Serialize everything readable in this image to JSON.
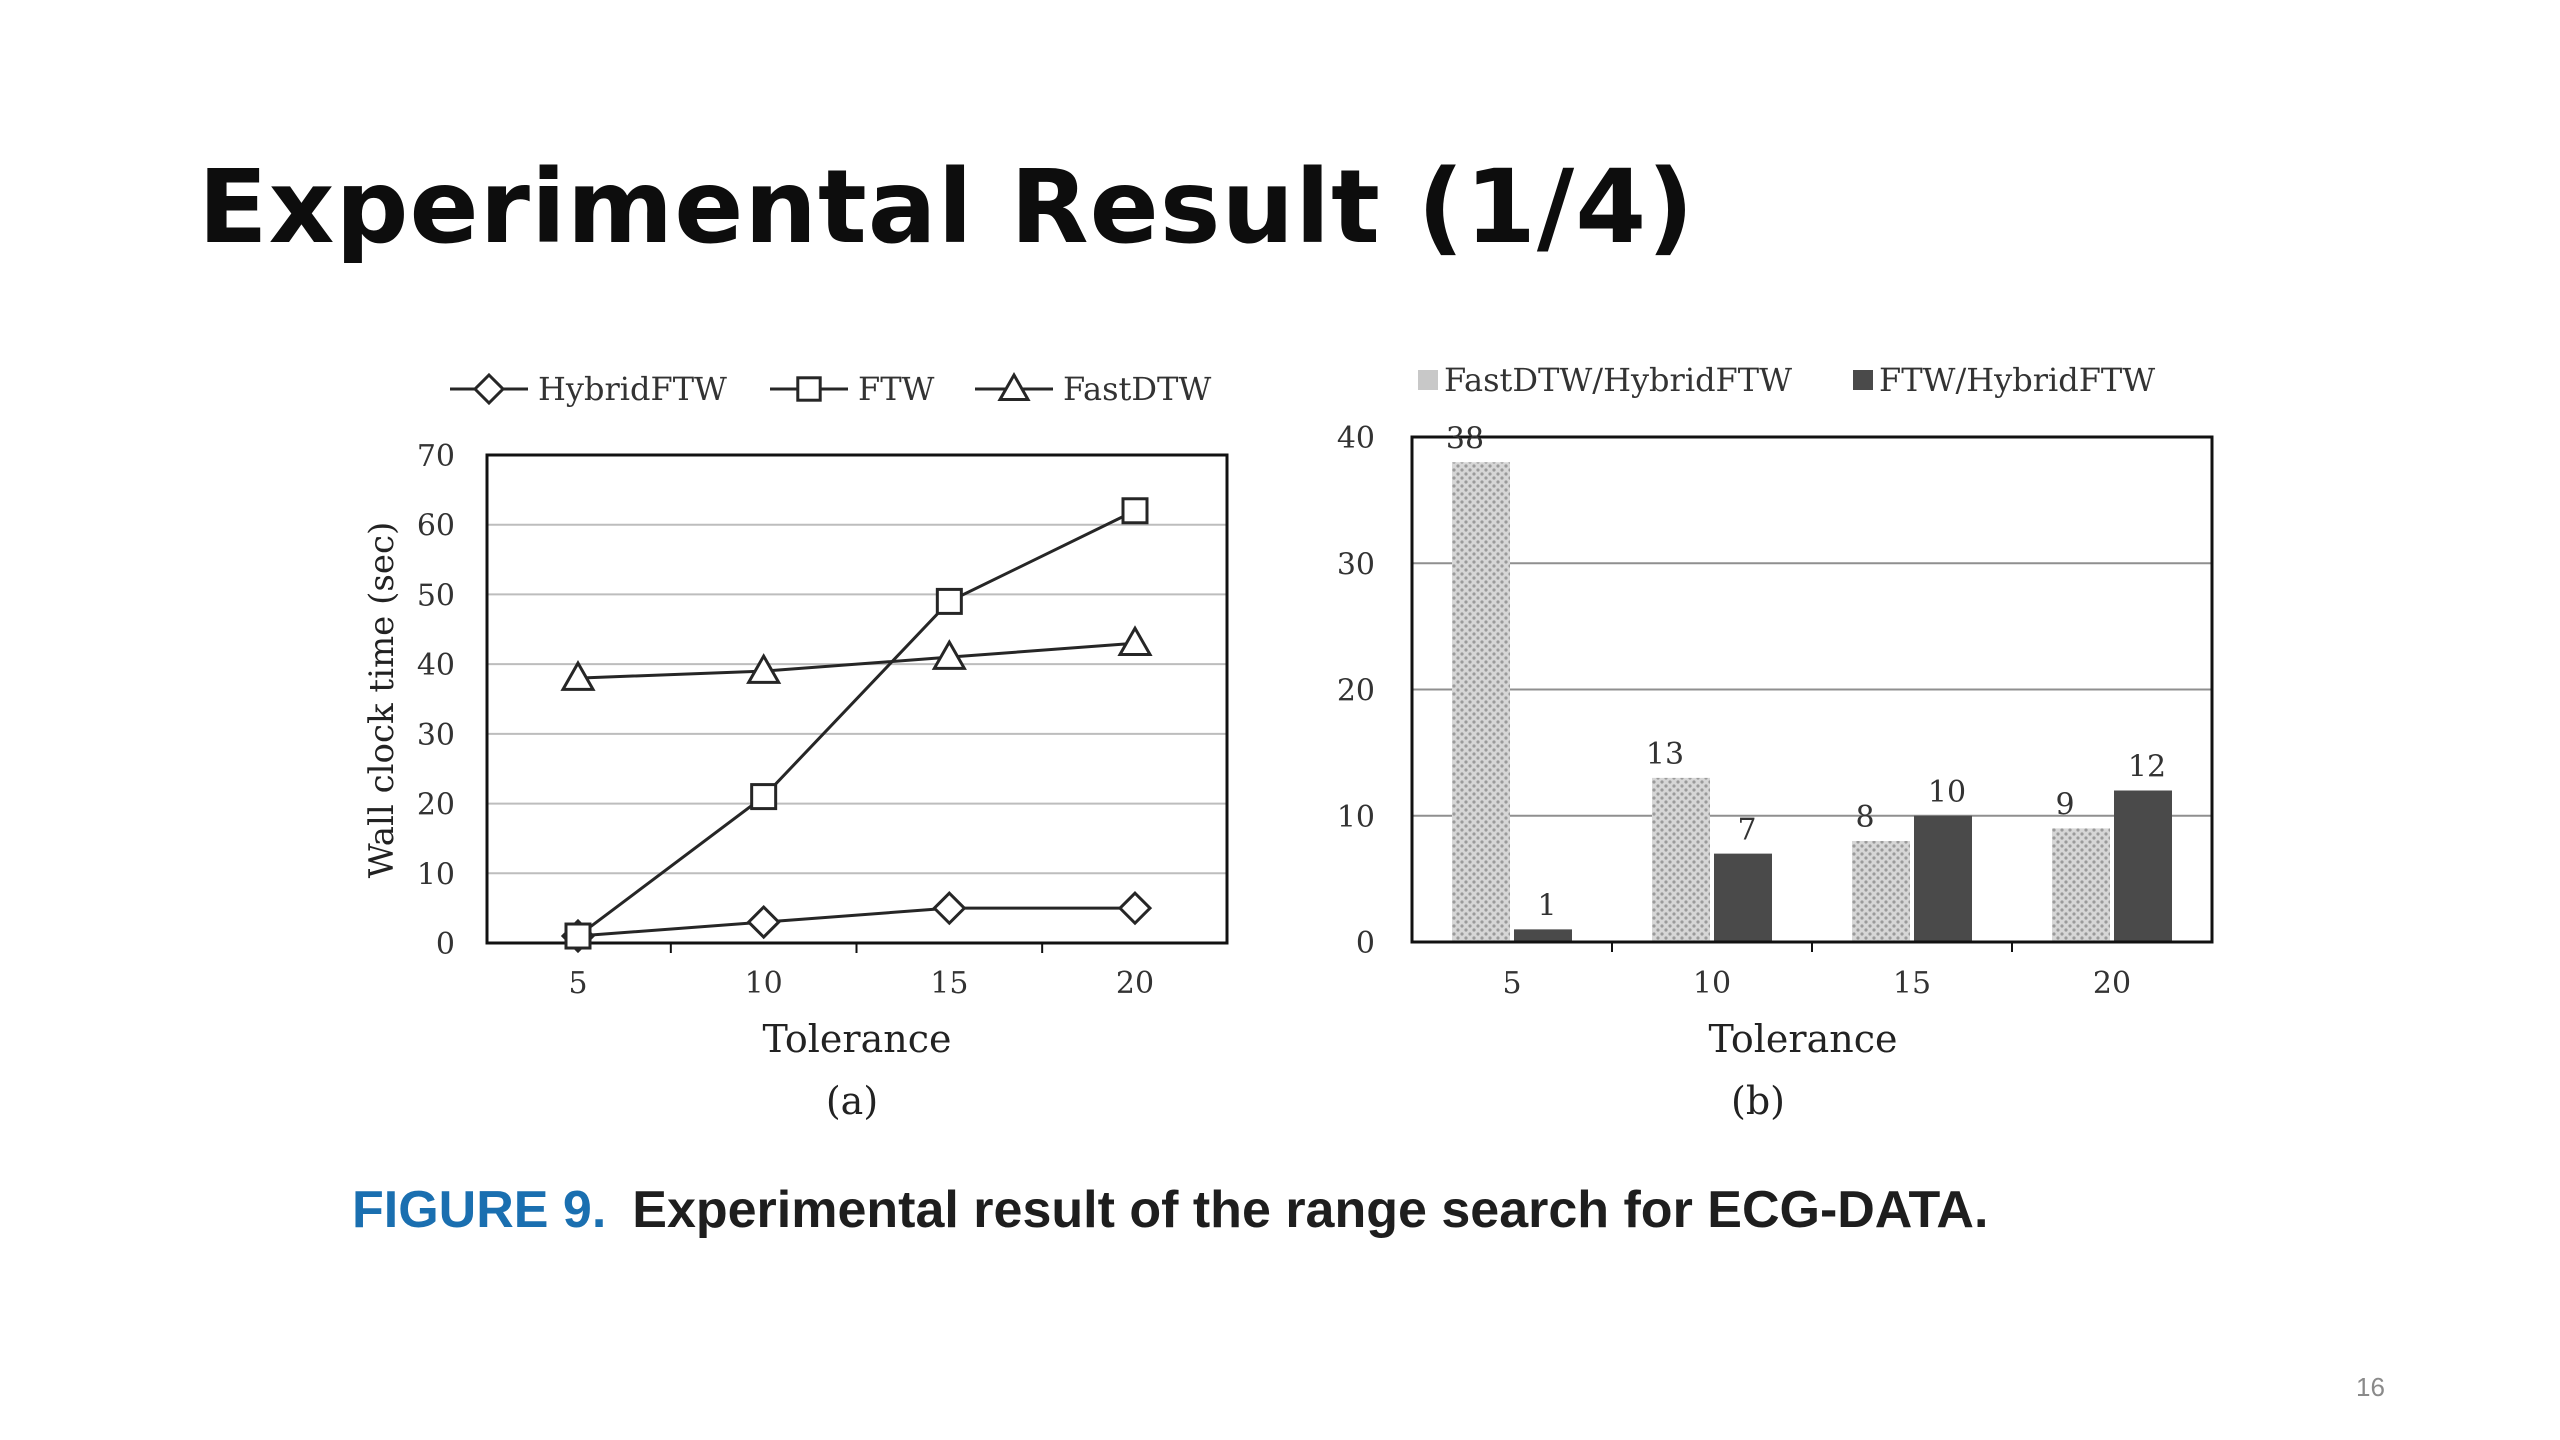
{
  "slide": {
    "title": "Experimental Result (1/4)",
    "caption_label": "FIGURE 9.",
    "caption_text": "Experimental result of the range search for ECG-DATA.",
    "page_number": "16"
  },
  "colors": {
    "line": "#262626",
    "light_bar": "#c8c8c8",
    "dark_bar": "#4a4a4a",
    "grid": "#bdbdbd",
    "caption_label": "#1a6fb0"
  },
  "chart_data": [
    {
      "type": "line",
      "panel_label": "(a)",
      "x": [
        5,
        10,
        15,
        20
      ],
      "series": [
        {
          "name": "HybridFTW",
          "marker": "diamond",
          "values": [
            1,
            3,
            5,
            5
          ]
        },
        {
          "name": "FTW",
          "marker": "square",
          "values": [
            1,
            21,
            49,
            62
          ]
        },
        {
          "name": "FastDTW",
          "marker": "triangle",
          "values": [
            38,
            39,
            41,
            43
          ]
        }
      ],
      "xlabel": "Tolerance",
      "ylabel": "Wall clock time (sec)",
      "ylim": [
        0,
        70
      ],
      "yticks": [
        0,
        10,
        20,
        30,
        40,
        50,
        60,
        70
      ],
      "grid": true,
      "legend": "top"
    },
    {
      "type": "bar",
      "panel_label": "(b)",
      "categories": [
        "5",
        "10",
        "15",
        "20"
      ],
      "series": [
        {
          "name": "FastDTW/HybridFTW",
          "values": [
            38,
            13,
            8,
            9
          ],
          "labels": [
            "38",
            "13",
            "8",
            "9"
          ]
        },
        {
          "name": "FTW/HybridFTW",
          "values": [
            1,
            7,
            10,
            12
          ],
          "labels": [
            "1",
            "7",
            "10",
            "12"
          ]
        }
      ],
      "xlabel": "Tolerance",
      "ylim": [
        0,
        40
      ],
      "yticks": [
        0,
        10,
        20,
        30,
        40
      ],
      "grid": true,
      "legend": "top"
    }
  ]
}
